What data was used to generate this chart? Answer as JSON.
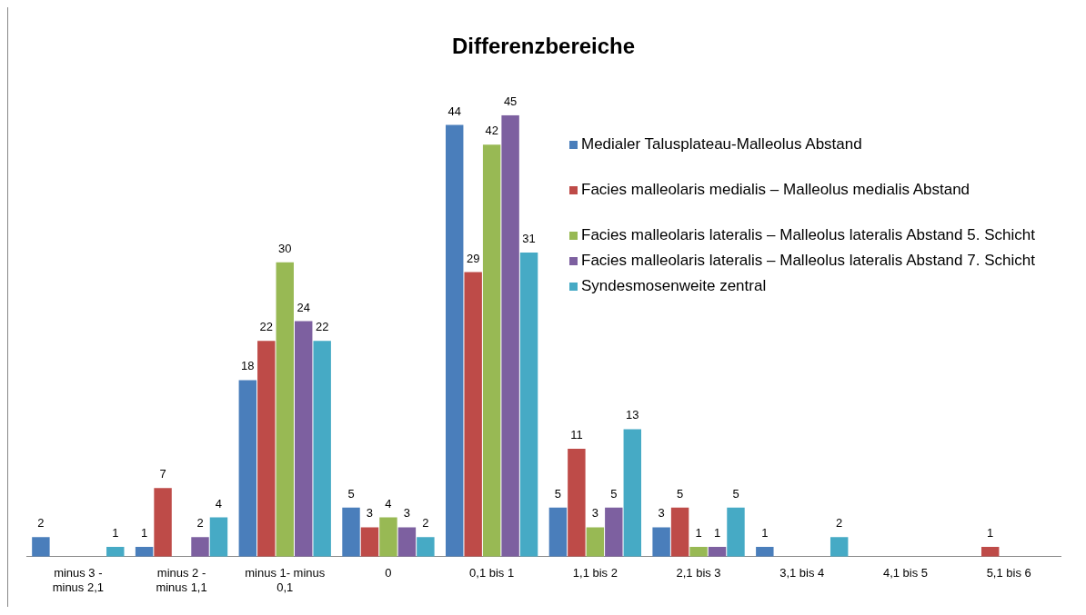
{
  "chart_data": {
    "type": "bar",
    "title": "Differenzbereiche",
    "categories": [
      "minus 3 - minus 2,1",
      "minus 2 - minus 1,1",
      "minus 1- minus 0,1",
      "0",
      "0,1 bis 1",
      "1,1 bis 2",
      "2,1 bis 3",
      "3,1 bis 4",
      "4,1 bis 5",
      "5,1 bis 6"
    ],
    "series": [
      {
        "name": "Medialer Talusplateau-Malleolus Abstand",
        "color": "#4a7ebb",
        "values": [
          2,
          1,
          18,
          5,
          44,
          5,
          3,
          1,
          null,
          null
        ]
      },
      {
        "name": "Facies malleolaris medialis – Malleolus medialis Abstand",
        "color": "#be4b48",
        "values": [
          null,
          7,
          22,
          3,
          29,
          11,
          5,
          null,
          null,
          1
        ]
      },
      {
        "name": "Facies malleolaris lateralis – Malleolus lateralis Abstand 5. Schicht",
        "color": "#98b954",
        "values": [
          null,
          null,
          30,
          4,
          42,
          3,
          1,
          null,
          null,
          null
        ]
      },
      {
        "name": "Facies malleolaris lateralis – Malleolus lateralis Abstand 7. Schicht",
        "color": "#7d60a0",
        "values": [
          null,
          2,
          24,
          3,
          45,
          5,
          1,
          null,
          null,
          null
        ]
      },
      {
        "name": "Syndesmosenweite zentral",
        "color": "#46aac5",
        "values": [
          1,
          4,
          22,
          2,
          31,
          13,
          5,
          2,
          null,
          null
        ]
      }
    ],
    "data_labels": true,
    "legend": "right",
    "tick_labels": "x"
  }
}
